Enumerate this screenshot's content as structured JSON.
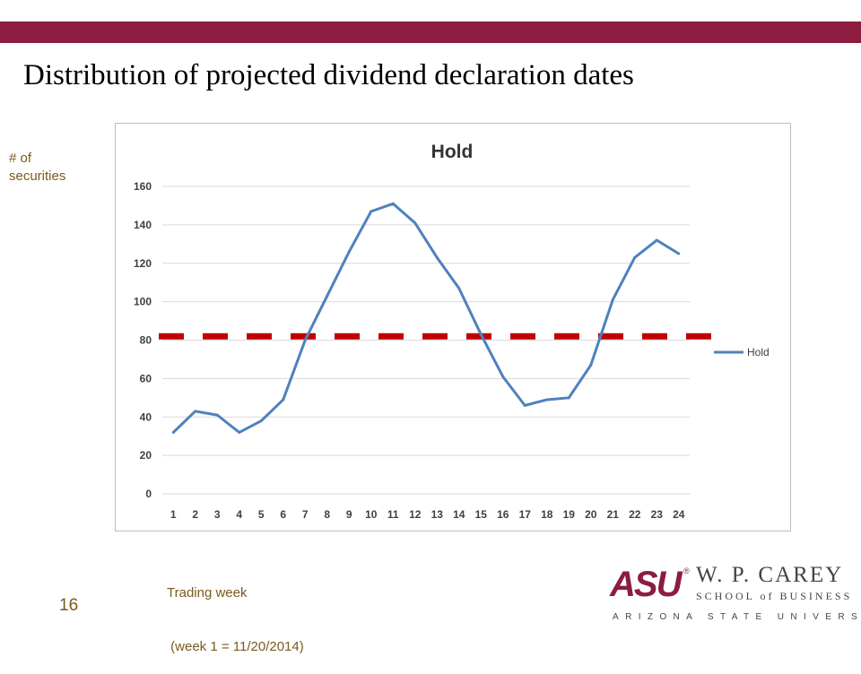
{
  "slide": {
    "title": "Distribution of projected dividend declaration dates",
    "page_number": "16",
    "ylabel_lines": [
      "# of",
      "securities"
    ],
    "xlabel_lines": [
      "Trading week",
      " (week 1 = 11/20/2014)"
    ]
  },
  "logo": {
    "mark": "ASU",
    "registered": "®",
    "name": "W. P. CAREY",
    "school": "SCHOOL of BUSINESS",
    "university": "ARIZONA STATE UNIVERSITY"
  },
  "colors": {
    "brand_maroon": "#8c1d40",
    "series_line": "#4f81bd",
    "reference_line": "#c00000",
    "gridline": "#d9d9d9"
  },
  "chart_data": {
    "type": "line",
    "title": "Hold",
    "x": [
      1,
      2,
      3,
      4,
      5,
      6,
      7,
      8,
      9,
      10,
      11,
      12,
      13,
      14,
      15,
      16,
      17,
      18,
      19,
      20,
      21,
      22,
      23,
      24
    ],
    "series": [
      {
        "name": "Hold",
        "values": [
          32,
          43,
          41,
          32,
          38,
          49,
          80,
          103,
          126,
          147,
          151,
          141,
          123,
          107,
          83,
          61,
          46,
          49,
          50,
          67,
          101,
          123,
          132,
          125
        ]
      }
    ],
    "reference_line": {
      "y": 82,
      "style": "dashed"
    },
    "ylim": [
      0,
      160
    ],
    "yticks": [
      0,
      20,
      40,
      60,
      80,
      100,
      120,
      140,
      160
    ],
    "grid": true,
    "legend_position": "right"
  }
}
